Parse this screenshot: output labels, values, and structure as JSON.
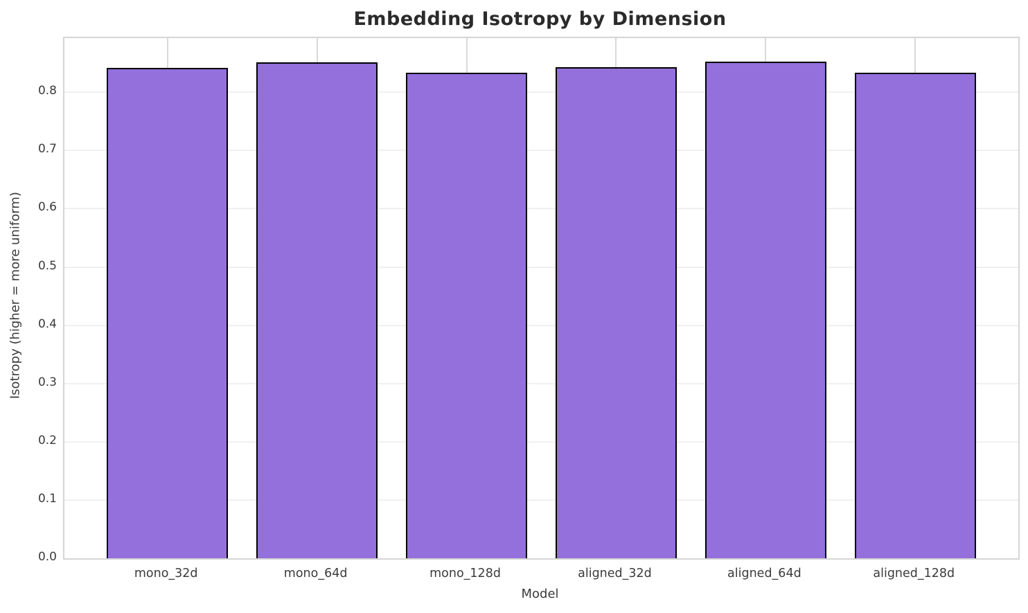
{
  "chart_data": {
    "type": "bar",
    "title": "Embedding Isotropy by Dimension",
    "xlabel": "Model",
    "ylabel": "Isotropy (higher = more uniform)",
    "categories": [
      "mono_32d",
      "mono_64d",
      "mono_128d",
      "aligned_32d",
      "aligned_64d",
      "aligned_128d"
    ],
    "values": [
      0.842,
      0.851,
      0.833,
      0.843,
      0.852,
      0.834
    ],
    "ylim": [
      0,
      0.893
    ],
    "yticks": [
      "0.0",
      "0.1",
      "0.2",
      "0.3",
      "0.4",
      "0.5",
      "0.6",
      "0.7",
      "0.8"
    ],
    "grid": true,
    "legend": "none",
    "bar_color": "#9370db",
    "bar_edge_color": "#000000"
  }
}
